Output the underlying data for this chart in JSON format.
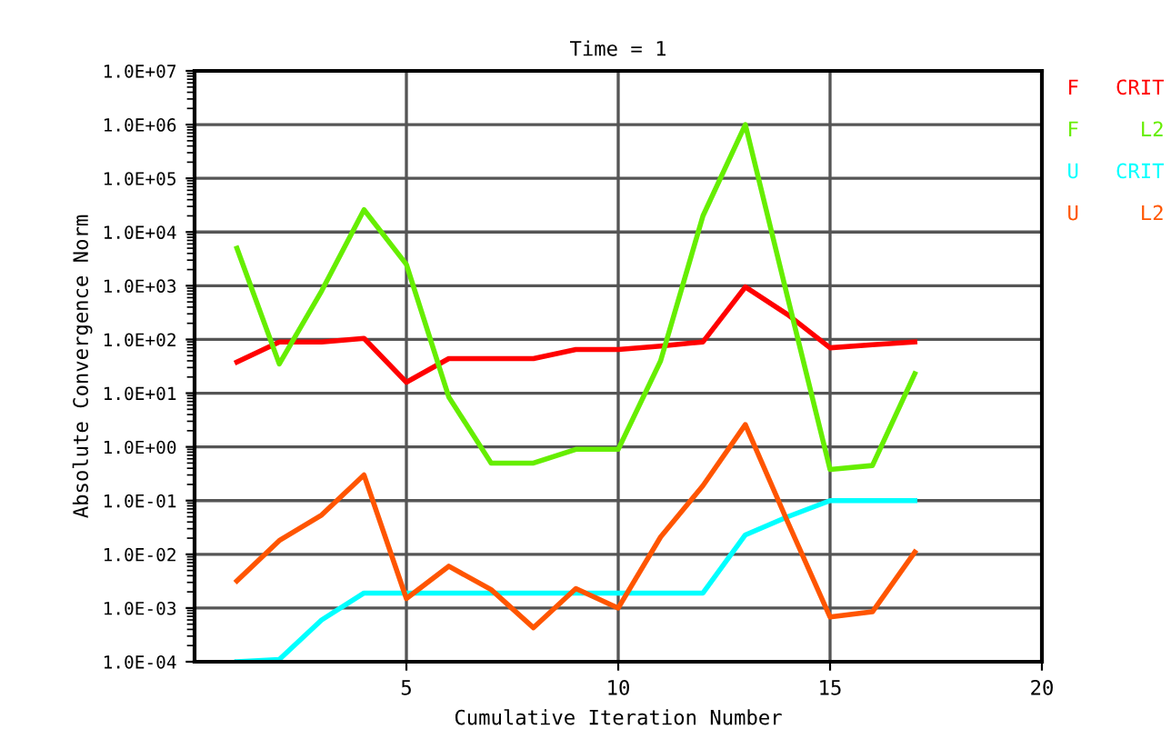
{
  "chart_data": {
    "type": "line",
    "title": "Time = 1",
    "xlabel": "Cumulative Iteration Number",
    "ylabel": "Absolute Convergence Norm",
    "x": [
      1,
      2,
      3,
      4,
      5,
      6,
      7,
      8,
      9,
      10,
      11,
      12,
      13,
      14,
      15,
      16,
      17
    ],
    "series": [
      {
        "name": "F   CRIT",
        "color": "#ff0000",
        "values": [
          38,
          90,
          90,
          105,
          16,
          44,
          44,
          44,
          65,
          65,
          75,
          90,
          950,
          290,
          70,
          80,
          90
        ]
      },
      {
        "name": "F     L2",
        "color": "#66ee00",
        "values": [
          5000,
          35,
          800,
          26000,
          2500,
          8.5,
          0.5,
          0.5,
          0.9,
          0.9,
          40,
          20000,
          1000000,
          600,
          0.38,
          0.45,
          23
        ]
      },
      {
        "name": "U   CRIT",
        "color": "#00ffff",
        "values": [
          0.0001,
          0.00011,
          0.0006,
          0.0019,
          0.0019,
          0.0019,
          0.0019,
          0.0019,
          0.0019,
          0.0019,
          0.0019,
          0.0019,
          0.023,
          0.05,
          0.1,
          0.1,
          0.1
        ]
      },
      {
        "name": "U     L2",
        "color": "#ff5500",
        "values": [
          0.0032,
          0.018,
          0.054,
          0.3,
          0.0015,
          0.006,
          0.0022,
          0.00043,
          0.0023,
          0.001,
          0.021,
          0.19,
          2.6,
          0.04,
          0.00068,
          0.00085,
          0.011
        ]
      }
    ],
    "log": "y",
    "xlim": [
      0,
      20
    ],
    "xticks": [
      5,
      10,
      15,
      20
    ],
    "ylim": [
      0.0001,
      10000000
    ],
    "yticks": [
      {
        "value": 0.0001,
        "label": "1.0E-04"
      },
      {
        "value": 0.001,
        "label": "1.0E-03"
      },
      {
        "value": 0.01,
        "label": "1.0E-02"
      },
      {
        "value": 0.1,
        "label": "1.0E-01"
      },
      {
        "value": 1,
        "label": "1.0E+00"
      },
      {
        "value": 10,
        "label": "1.0E+01"
      },
      {
        "value": 100,
        "label": "1.0E+02"
      },
      {
        "value": 1000,
        "label": "1.0E+03"
      },
      {
        "value": 10000,
        "label": "1.0E+04"
      },
      {
        "value": 100000,
        "label": "1.0E+05"
      },
      {
        "value": 1000000,
        "label": "1.0E+06"
      },
      {
        "value": 10000000,
        "label": "1.0E+07"
      }
    ],
    "grid": true,
    "legend": "right",
    "marker": "none",
    "line_style": "solid"
  }
}
